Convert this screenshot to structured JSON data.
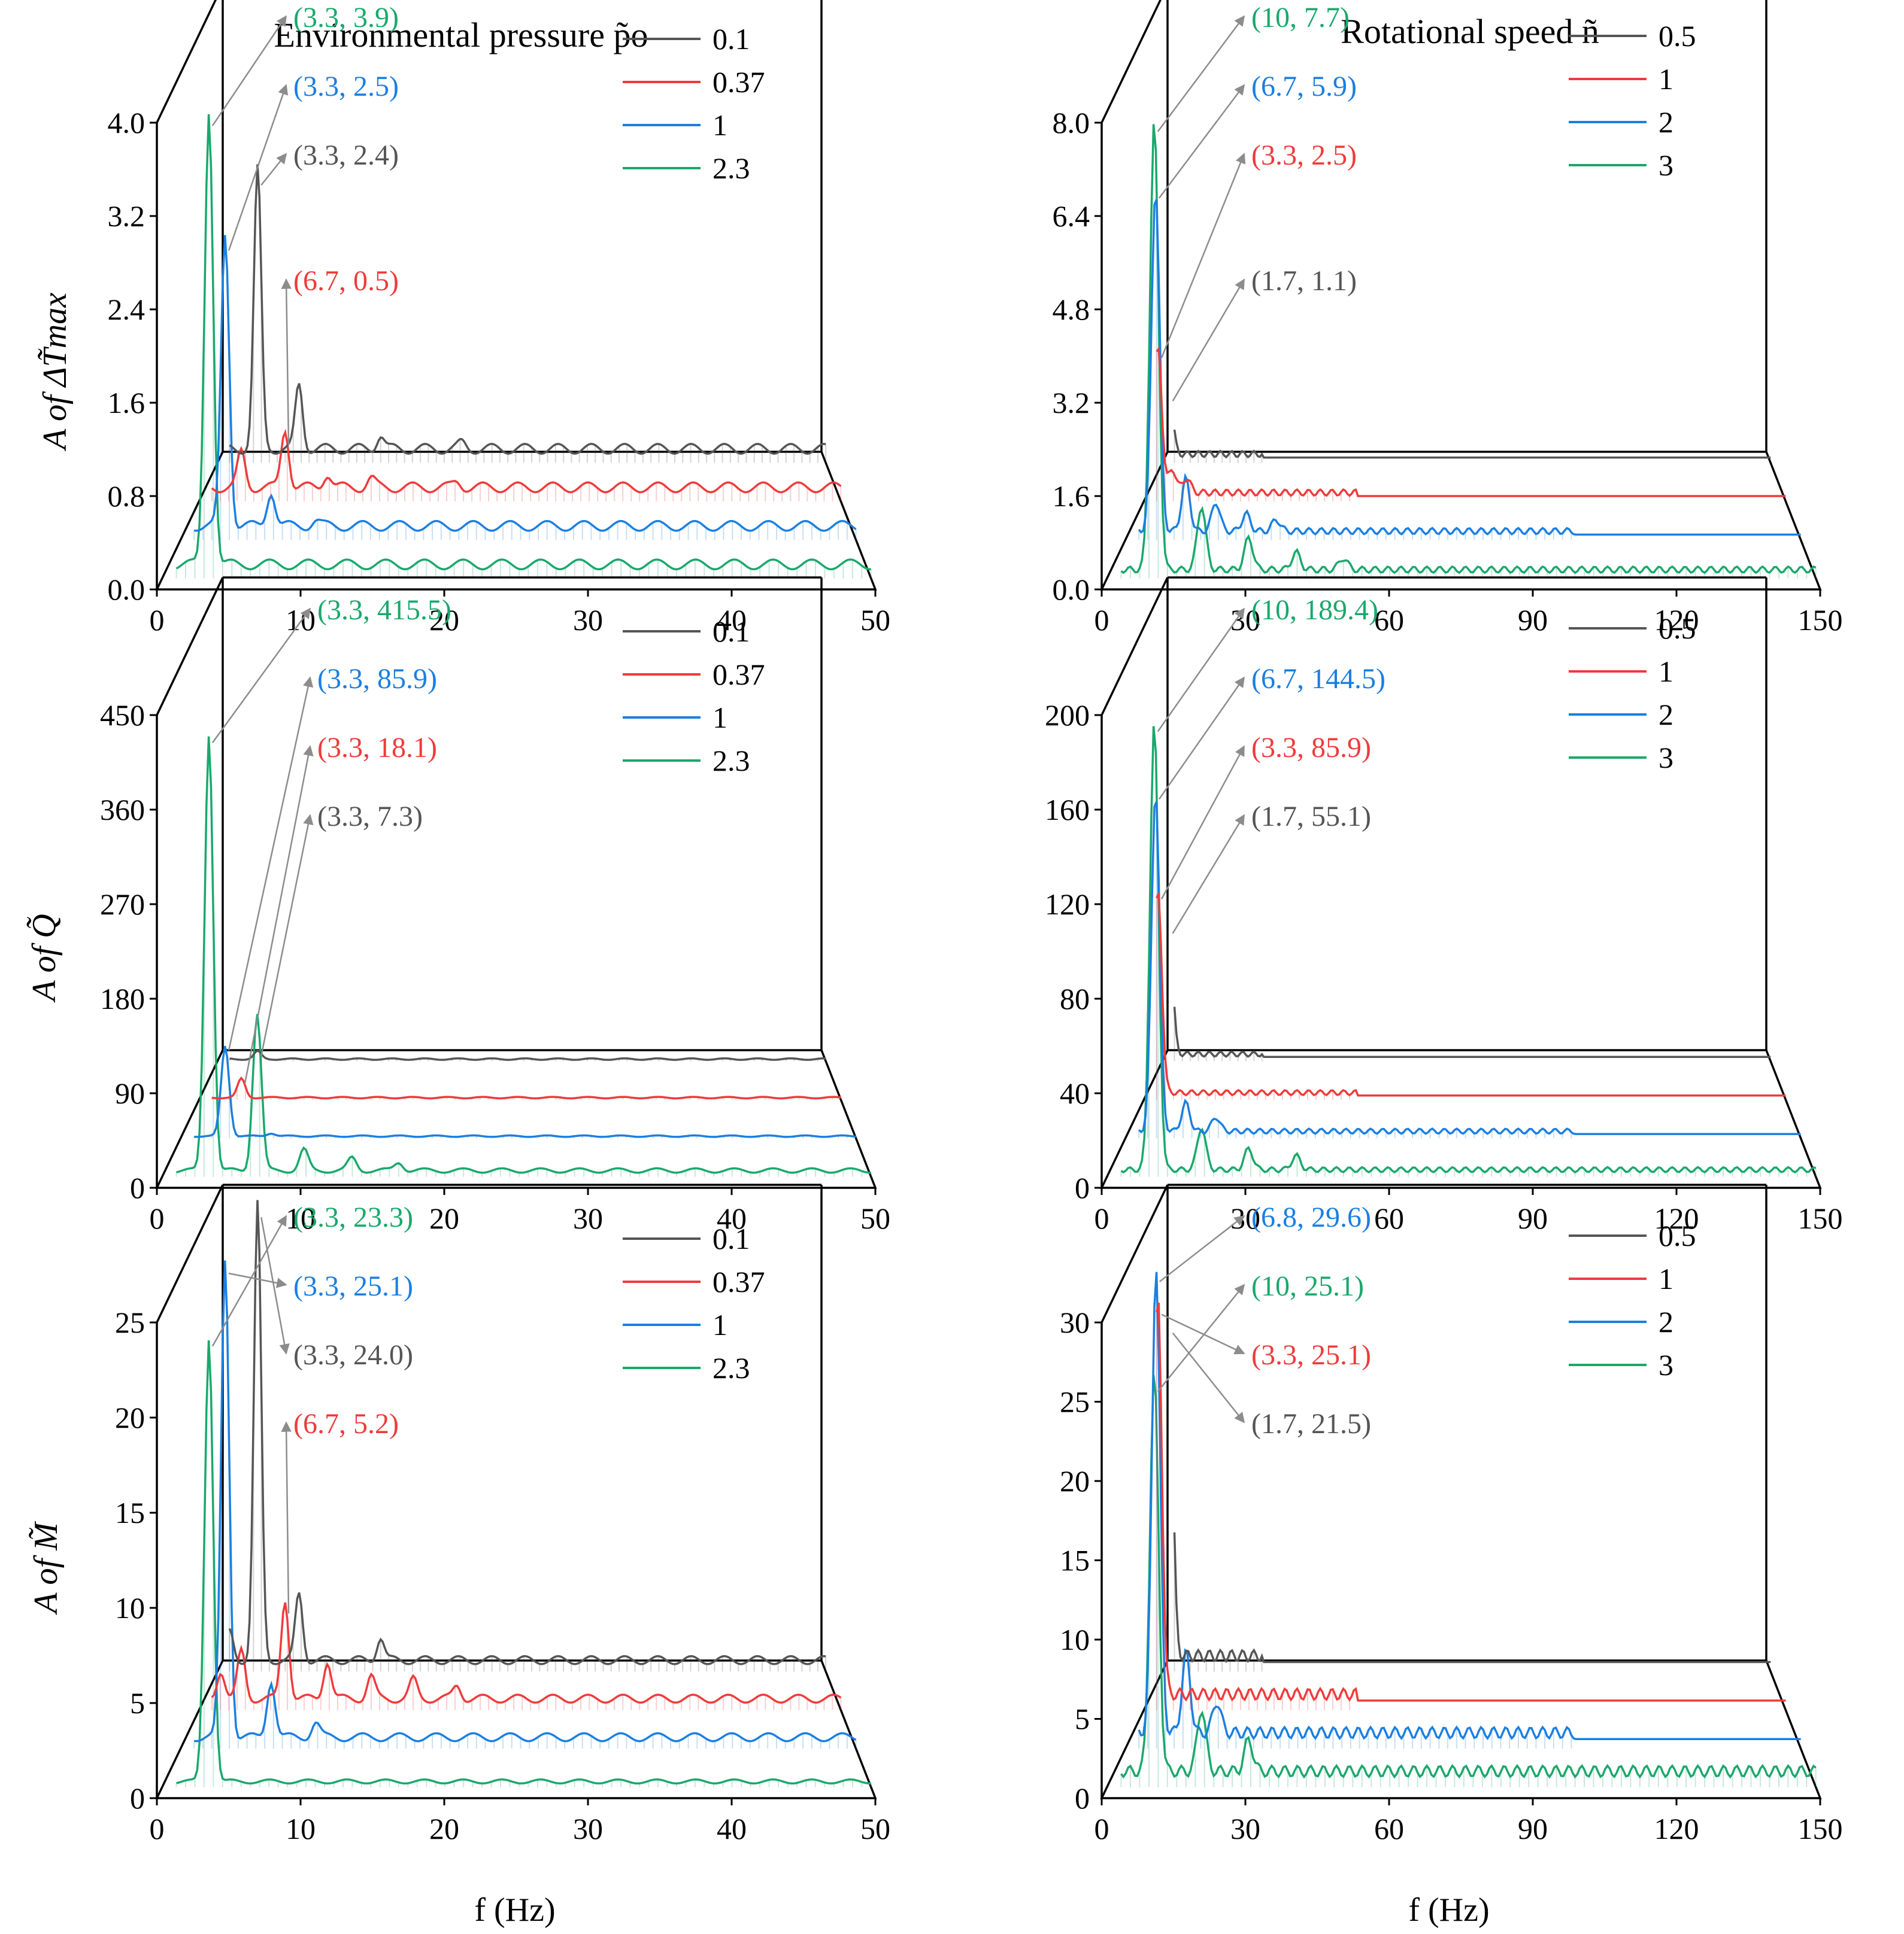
{
  "colors": {
    "s1": "#555555",
    "s2": "#ef3b3b",
    "s3": "#1b7fe0",
    "s4": "#1aa86b",
    "frame": "#000000",
    "arrow": "#8c8c8c"
  },
  "column_titles": {
    "left": "Environmental pressure  p̃o",
    "right": "Rotational speed  ñ"
  },
  "ylabels": [
    "A of ΔT̃max",
    "A of Q̃",
    "A of M̃"
  ],
  "xlabel": "f (Hz)",
  "chart_data": [
    {
      "id": "p1",
      "type": "line",
      "row": 0,
      "col": 0,
      "title": "Environmental pressure p̃o",
      "ylabel": "A of ΔT̃max",
      "xlabel": "",
      "xlim": [
        0,
        50
      ],
      "ylim": [
        0,
        4.0
      ],
      "xticks": [
        0,
        10,
        20,
        30,
        40,
        50
      ],
      "xtick_labels": [
        "0",
        "10",
        "20",
        "30",
        "40",
        "50"
      ],
      "yticks": [
        0,
        0.8,
        1.6,
        2.4,
        3.2,
        4.0
      ],
      "ytick_labels": [
        "0.0",
        "0.8",
        "1.6",
        "2.4",
        "3.2",
        "4.0"
      ],
      "series": [
        {
          "name": "0.1",
          "cutoff": 50,
          "peaks": [
            {
              "f": 3.3,
              "a": 2.4
            },
            {
              "f": 6.7,
              "a": 0.55
            },
            {
              "f": 13.4,
              "a": 0.12
            },
            {
              "f": 20.1,
              "a": 0.05
            }
          ],
          "base": 0.12
        },
        {
          "name": "0.37",
          "cutoff": 50,
          "peaks": [
            {
              "f": 3.3,
              "a": 0.3
            },
            {
              "f": 6.7,
              "a": 0.5
            },
            {
              "f": 10,
              "a": 0.12
            },
            {
              "f": 13.4,
              "a": 0.08
            },
            {
              "f": 20.1,
              "a": 0.05
            }
          ],
          "base": 0.12
        },
        {
          "name": "1",
          "cutoff": 50,
          "peaks": [
            {
              "f": 3.3,
              "a": 2.5
            },
            {
              "f": 6.7,
              "a": 0.3
            },
            {
              "f": 10,
              "a": 0.05
            }
          ],
          "base": 0.12
        },
        {
          "name": "2.3",
          "cutoff": 50,
          "peaks": [
            {
              "f": 3.3,
              "a": 3.9
            }
          ],
          "base": 0.12
        }
      ],
      "annotations": [
        {
          "label": "(3.3, 3.9)",
          "series": 3
        },
        {
          "label": "(3.3, 2.5)",
          "series": 2
        },
        {
          "label": "(3.3, 2.4)",
          "series": 0
        },
        {
          "label": "(6.7, 0.5)",
          "series": 1
        }
      ]
    },
    {
      "id": "p2",
      "type": "line",
      "row": 0,
      "col": 1,
      "title": "Rotational speed ñ",
      "ylabel": "",
      "xlabel": "",
      "xlim": [
        0,
        150
      ],
      "ylim": [
        0,
        8.0
      ],
      "xticks": [
        0,
        30,
        60,
        90,
        120,
        150
      ],
      "xtick_labels": [
        "0",
        "30",
        "60",
        "90",
        "120",
        "150"
      ],
      "yticks": [
        0,
        1.6,
        3.2,
        4.8,
        6.4,
        8.0
      ],
      "ytick_labels": [
        "0.0",
        "1.6",
        "3.2",
        "4.8",
        "6.4",
        "8.0"
      ],
      "series": [
        {
          "name": "0.5",
          "cutoff": 25,
          "peaks": [
            {
              "f": 1.7,
              "a": 1.1
            }
          ],
          "base": 0.15
        },
        {
          "name": "1",
          "cutoff": 50,
          "peaks": [
            {
              "f": 3.3,
              "a": 2.5
            },
            {
              "f": 6.7,
              "a": 0.4
            },
            {
              "f": 10,
              "a": 0.25
            }
          ],
          "base": 0.15
        },
        {
          "name": "2",
          "cutoff": 100,
          "peaks": [
            {
              "f": 6.7,
              "a": 5.9
            },
            {
              "f": 13.4,
              "a": 0.9
            },
            {
              "f": 20.1,
              "a": 0.5
            },
            {
              "f": 26.8,
              "a": 0.3
            },
            {
              "f": 33.5,
              "a": 0.2
            }
          ],
          "base": 0.15
        },
        {
          "name": "3",
          "cutoff": 150,
          "peaks": [
            {
              "f": 10,
              "a": 7.7
            },
            {
              "f": 20,
              "a": 1.1
            },
            {
              "f": 30,
              "a": 0.55
            },
            {
              "f": 40,
              "a": 0.3
            },
            {
              "f": 50,
              "a": 0.2
            }
          ],
          "base": 0.15
        }
      ],
      "annotations": [
        {
          "label": "(10, 7.7)",
          "series": 3
        },
        {
          "label": "(6.7, 5.9)",
          "series": 2
        },
        {
          "label": "(3.3, 2.5)",
          "series": 1
        },
        {
          "label": "(1.7, 1.1)",
          "series": 0
        }
      ]
    },
    {
      "id": "p3",
      "type": "line",
      "row": 1,
      "col": 0,
      "title": "",
      "ylabel": "A of Q̃",
      "xlabel": "",
      "xlim": [
        0,
        50
      ],
      "ylim": [
        0,
        450
      ],
      "xticks": [
        0,
        10,
        20,
        30,
        40,
        50
      ],
      "xtick_labels": [
        "0",
        "10",
        "20",
        "30",
        "40",
        "50"
      ],
      "yticks": [
        0,
        90,
        180,
        270,
        360,
        450
      ],
      "ytick_labels": [
        "0",
        "90",
        "180",
        "270",
        "360",
        "450"
      ],
      "series": [
        {
          "name": "0.1",
          "cutoff": 50,
          "peaks": [
            {
              "f": 3.3,
              "a": 7.3
            }
          ],
          "base": 2
        },
        {
          "name": "0.37",
          "cutoff": 50,
          "peaks": [
            {
              "f": 3.3,
              "a": 18.1
            }
          ],
          "base": 2
        },
        {
          "name": "1",
          "cutoff": 50,
          "peaks": [
            {
              "f": 3.3,
              "a": 85.9
            },
            {
              "f": 6.7,
              "a": 3
            }
          ],
          "base": 2
        },
        {
          "name": "2.3",
          "cutoff": 50,
          "peaks": [
            {
              "f": 3.3,
              "a": 415.5
            },
            {
              "f": 6.7,
              "a": 150
            },
            {
              "f": 10,
              "a": 20
            },
            {
              "f": 13.4,
              "a": 12
            },
            {
              "f": 16.7,
              "a": 8
            }
          ],
          "base": 6
        }
      ],
      "annotations": [
        {
          "label": "(3.3, 415.5)",
          "series": 3
        },
        {
          "label": "(3.3, 85.9)",
          "series": 2
        },
        {
          "label": "(3.3, 18.1)",
          "series": 1
        },
        {
          "label": "(3.3, 7.3)",
          "series": 0
        }
      ]
    },
    {
      "id": "p4",
      "type": "line",
      "row": 1,
      "col": 1,
      "title": "",
      "ylabel": "",
      "xlabel": "",
      "xlim": [
        0,
        150
      ],
      "ylim": [
        0,
        200
      ],
      "xticks": [
        0,
        30,
        60,
        90,
        120,
        150
      ],
      "xtick_labels": [
        "0",
        "30",
        "60",
        "90",
        "120",
        "150"
      ],
      "yticks": [
        0,
        40,
        80,
        120,
        160,
        200
      ],
      "ytick_labels": [
        "0",
        "40",
        "80",
        "120",
        "160",
        "200"
      ],
      "series": [
        {
          "name": "0.5",
          "cutoff": 25,
          "peaks": [
            {
              "f": 1.7,
              "a": 55.1
            }
          ],
          "base": 3
        },
        {
          "name": "1",
          "cutoff": 50,
          "peaks": [
            {
              "f": 3.3,
              "a": 85.9
            }
          ],
          "base": 3
        },
        {
          "name": "2",
          "cutoff": 100,
          "peaks": [
            {
              "f": 6.7,
              "a": 144.5
            },
            {
              "f": 13.4,
              "a": 12
            },
            {
              "f": 20.1,
              "a": 6
            }
          ],
          "base": 3
        },
        {
          "name": "3",
          "cutoff": 150,
          "peaks": [
            {
              "f": 10,
              "a": 189.4
            },
            {
              "f": 20,
              "a": 18
            },
            {
              "f": 30,
              "a": 9
            },
            {
              "f": 40,
              "a": 6
            }
          ],
          "base": 3
        }
      ],
      "annotations": [
        {
          "label": "(10, 189.4)",
          "series": 3
        },
        {
          "label": "(6.7, 144.5)",
          "series": 2
        },
        {
          "label": "(3.3, 85.9)",
          "series": 1
        },
        {
          "label": "(1.7, 55.1)",
          "series": 0
        }
      ]
    },
    {
      "id": "p5",
      "type": "line",
      "row": 2,
      "col": 0,
      "title": "",
      "ylabel": "A of M̃",
      "xlabel": "f (Hz)",
      "xlim": [
        0,
        50
      ],
      "ylim": [
        0,
        25
      ],
      "xticks": [
        0,
        10,
        20,
        30,
        40,
        50
      ],
      "xtick_labels": [
        "0",
        "10",
        "20",
        "30",
        "40",
        "50"
      ],
      "yticks": [
        0,
        5,
        10,
        15,
        20,
        25
      ],
      "ytick_labels": [
        "0",
        "5",
        "10",
        "15",
        "20",
        "25"
      ],
      "series": [
        {
          "name": "0.1",
          "cutoff": 50,
          "peaks": [
            {
              "f": 3.3,
              "a": 24.0
            },
            {
              "f": 6.7,
              "a": 3.5
            },
            {
              "f": 13.4,
              "a": 1.2
            },
            {
              "f": 1.0,
              "a": 1.5
            }
          ],
          "base": 0.6
        },
        {
          "name": "0.37",
          "cutoff": 50,
          "peaks": [
            {
              "f": 1.7,
              "a": 1.5
            },
            {
              "f": 3.3,
              "a": 2.5
            },
            {
              "f": 6.7,
              "a": 5.2
            },
            {
              "f": 10,
              "a": 2.0
            },
            {
              "f": 13.4,
              "a": 1.2
            },
            {
              "f": 16.7,
              "a": 1.0
            },
            {
              "f": 20.1,
              "a": 0.7
            }
          ],
          "base": 0.6
        },
        {
          "name": "1",
          "cutoff": 50,
          "peaks": [
            {
              "f": 3.3,
              "a": 25.1
            },
            {
              "f": 6.7,
              "a": 3.0
            },
            {
              "f": 10,
              "a": 0.8
            }
          ],
          "base": 0.6
        },
        {
          "name": "2.3",
          "cutoff": 50,
          "peaks": [
            {
              "f": 3.3,
              "a": 23.3
            }
          ],
          "base": 0.3
        }
      ],
      "annotations": [
        {
          "label": "(3.3, 23.3)",
          "series": 3
        },
        {
          "label": "(3.3, 25.1)",
          "series": 2
        },
        {
          "label": "(3.3, 24.0)",
          "series": 0
        },
        {
          "label": "(6.7, 5.2)",
          "series": 1
        }
      ]
    },
    {
      "id": "p6",
      "type": "line",
      "row": 2,
      "col": 1,
      "title": "",
      "ylabel": "",
      "xlabel": "f (Hz)",
      "xlim": [
        0,
        150
      ],
      "ylim": [
        0,
        30
      ],
      "xticks": [
        0,
        30,
        60,
        90,
        120,
        150
      ],
      "xtick_labels": [
        "0",
        "30",
        "60",
        "90",
        "120",
        "150"
      ],
      "yticks": [
        5,
        10,
        15,
        20,
        25,
        30
      ],
      "ytick_labels": [
        "5",
        "10",
        "15",
        "20",
        "25",
        "30"
      ],
      "ytick_zero_label": "0",
      "series": [
        {
          "name": "0.5",
          "cutoff": 25,
          "peaks": [
            {
              "f": 1.7,
              "a": 21.5
            }
          ],
          "base": 1.0
        },
        {
          "name": "1",
          "cutoff": 50,
          "peaks": [
            {
              "f": 3.3,
              "a": 25.1
            }
          ],
          "base": 1.0
        },
        {
          "name": "2",
          "cutoff": 100,
          "peaks": [
            {
              "f": 6.8,
              "a": 29.6
            },
            {
              "f": 13.5,
              "a": 5.0
            },
            {
              "f": 20.3,
              "a": 2.0
            }
          ],
          "base": 1.0
        },
        {
          "name": "3",
          "cutoff": 150,
          "peaks": [
            {
              "f": 10,
              "a": 25.1
            },
            {
              "f": 20,
              "a": 4.0
            },
            {
              "f": 30,
              "a": 2.0
            }
          ],
          "base": 1.0
        }
      ],
      "annotations": [
        {
          "label": "(6.8, 29.6)",
          "series": 2
        },
        {
          "label": "(10, 25.1)",
          "series": 3
        },
        {
          "label": "(3.3, 25.1)",
          "series": 1
        },
        {
          "label": "(1.7, 21.5)",
          "series": 0
        }
      ]
    }
  ]
}
